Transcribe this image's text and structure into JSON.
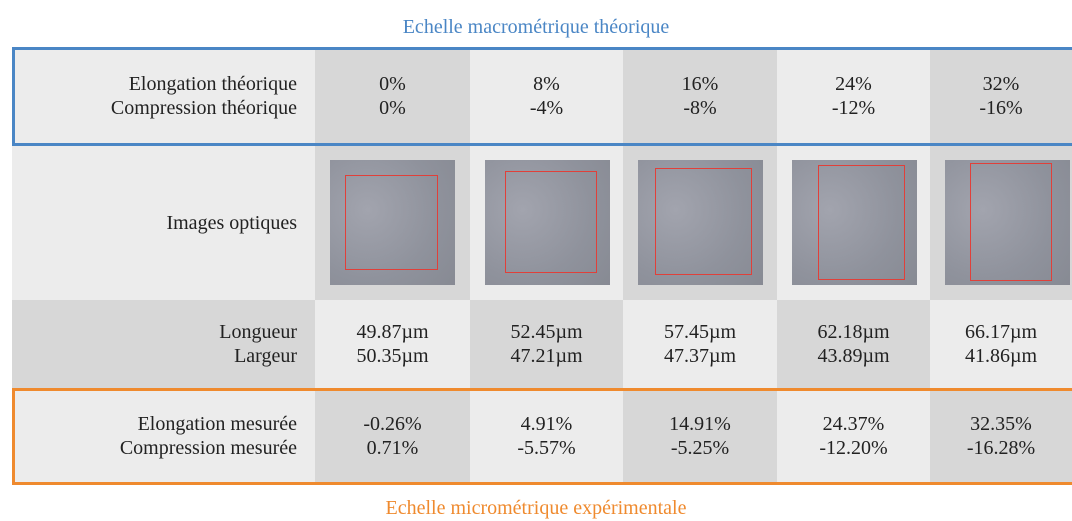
{
  "header": {
    "title": "Echelle macrométrique théorique"
  },
  "table": {
    "rows": [
      {
        "label": [
          "Elongation théorique",
          "Compression théorique"
        ],
        "cells": [
          [
            "0%",
            "0%"
          ],
          [
            "8%",
            "-4%"
          ],
          [
            "16%",
            "-8%"
          ],
          [
            "24%",
            "-12%"
          ],
          [
            "32%",
            "-16%"
          ]
        ]
      },
      {
        "label": [
          "Images optiques"
        ],
        "cells": []
      },
      {
        "label": [
          "Longueur",
          "Largeur"
        ],
        "cells": [
          [
            "49.87µm",
            "50.35µm"
          ],
          [
            "52.45µm",
            "47.21µm"
          ],
          [
            "57.45µm",
            "47.37µm"
          ],
          [
            "62.18µm",
            "43.89µm"
          ],
          [
            "66.17µm",
            "41.86µm"
          ]
        ]
      },
      {
        "label": [
          "Elongation mesurée",
          "Compression mesurée"
        ],
        "cells": [
          [
            "-0.26%",
            "0.71%"
          ],
          [
            "4.91%",
            "-5.57%"
          ],
          [
            "14.91%",
            "-5.25%"
          ],
          [
            "24.37%",
            "-12.20%"
          ],
          [
            "32.35%",
            "-16.28%"
          ]
        ]
      }
    ]
  },
  "footer": {
    "title": "Echelle micrométrique expérimentale"
  }
}
